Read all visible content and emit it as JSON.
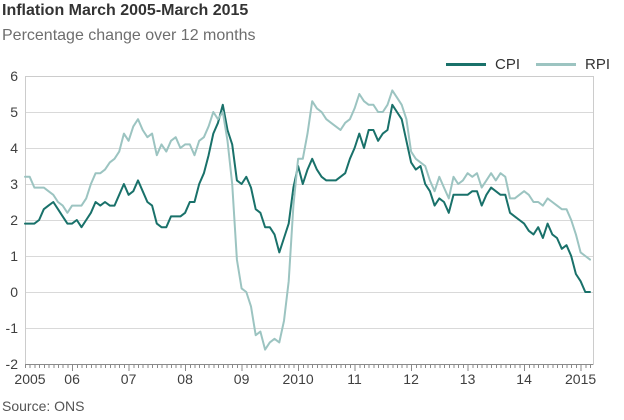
{
  "header": {
    "title": "Inflation March 2005-March 2015",
    "subtitle": "Percentage change over 12 months"
  },
  "footer": {
    "source": "Source: ONS"
  },
  "legend": [
    {
      "label": "CPI",
      "color": "#19716a"
    },
    {
      "label": "RPI",
      "color": "#9cc4c1"
    }
  ],
  "chart_data": {
    "type": "line",
    "title": "Inflation March 2005-March 2015",
    "subtitle": "Percentage change over 12 months",
    "source": "Source: ONS",
    "grid": true,
    "legend_position": "top-right",
    "ylim": [
      -2,
      6
    ],
    "y_ticks": [
      6,
      5,
      4,
      3,
      2,
      1,
      0,
      -1,
      -2
    ],
    "x_tick_labels": [
      "2005",
      "06",
      "07",
      "08",
      "09",
      "2010",
      "11",
      "12",
      "13",
      "14",
      "2015"
    ],
    "categories": [
      "2005-03",
      "2005-04",
      "2005-05",
      "2005-06",
      "2005-07",
      "2005-08",
      "2005-09",
      "2005-10",
      "2005-11",
      "2005-12",
      "2006-01",
      "2006-02",
      "2006-03",
      "2006-04",
      "2006-05",
      "2006-06",
      "2006-07",
      "2006-08",
      "2006-09",
      "2006-10",
      "2006-11",
      "2006-12",
      "2007-01",
      "2007-02",
      "2007-03",
      "2007-04",
      "2007-05",
      "2007-06",
      "2007-07",
      "2007-08",
      "2007-09",
      "2007-10",
      "2007-11",
      "2007-12",
      "2008-01",
      "2008-02",
      "2008-03",
      "2008-04",
      "2008-05",
      "2008-06",
      "2008-07",
      "2008-08",
      "2008-09",
      "2008-10",
      "2008-11",
      "2008-12",
      "2009-01",
      "2009-02",
      "2009-03",
      "2009-04",
      "2009-05",
      "2009-06",
      "2009-07",
      "2009-08",
      "2009-09",
      "2009-10",
      "2009-11",
      "2009-12",
      "2010-01",
      "2010-02",
      "2010-03",
      "2010-04",
      "2010-05",
      "2010-06",
      "2010-07",
      "2010-08",
      "2010-09",
      "2010-10",
      "2010-11",
      "2010-12",
      "2011-01",
      "2011-02",
      "2011-03",
      "2011-04",
      "2011-05",
      "2011-06",
      "2011-07",
      "2011-08",
      "2011-09",
      "2011-10",
      "2011-11",
      "2011-12",
      "2012-01",
      "2012-02",
      "2012-03",
      "2012-04",
      "2012-05",
      "2012-06",
      "2012-07",
      "2012-08",
      "2012-09",
      "2012-10",
      "2012-11",
      "2012-12",
      "2013-01",
      "2013-02",
      "2013-03",
      "2013-04",
      "2013-05",
      "2013-06",
      "2013-07",
      "2013-08",
      "2013-09",
      "2013-10",
      "2013-11",
      "2013-12",
      "2014-01",
      "2014-02",
      "2014-03",
      "2014-04",
      "2014-05",
      "2014-06",
      "2014-07",
      "2014-08",
      "2014-09",
      "2014-10",
      "2014-11",
      "2014-12",
      "2015-01",
      "2015-02",
      "2015-03"
    ],
    "series": [
      {
        "name": "CPI",
        "color": "#19716a",
        "values": [
          1.9,
          1.9,
          1.9,
          2.0,
          2.3,
          2.4,
          2.5,
          2.3,
          2.1,
          1.9,
          1.9,
          2.0,
          1.8,
          2.0,
          2.2,
          2.5,
          2.4,
          2.5,
          2.4,
          2.4,
          2.7,
          3.0,
          2.7,
          2.8,
          3.1,
          2.8,
          2.5,
          2.4,
          1.9,
          1.8,
          1.8,
          2.1,
          2.1,
          2.1,
          2.2,
          2.5,
          2.5,
          3.0,
          3.3,
          3.8,
          4.4,
          4.7,
          5.2,
          4.5,
          4.1,
          3.1,
          3.0,
          3.2,
          2.9,
          2.3,
          2.2,
          1.8,
          1.8,
          1.6,
          1.1,
          1.5,
          1.9,
          2.9,
          3.5,
          3.0,
          3.4,
          3.7,
          3.4,
          3.2,
          3.1,
          3.1,
          3.1,
          3.2,
          3.3,
          3.7,
          4.0,
          4.4,
          4.0,
          4.5,
          4.5,
          4.2,
          4.4,
          4.5,
          5.2,
          5.0,
          4.8,
          4.2,
          3.6,
          3.4,
          3.5,
          3.0,
          2.8,
          2.4,
          2.6,
          2.5,
          2.2,
          2.7,
          2.7,
          2.7,
          2.7,
          2.8,
          2.8,
          2.4,
          2.7,
          2.9,
          2.8,
          2.7,
          2.7,
          2.2,
          2.1,
          2.0,
          1.9,
          1.7,
          1.6,
          1.8,
          1.5,
          1.9,
          1.6,
          1.5,
          1.2,
          1.3,
          1.0,
          0.5,
          0.3,
          0.0,
          0.0
        ]
      },
      {
        "name": "RPI",
        "color": "#9cc4c1",
        "values": [
          3.2,
          3.2,
          2.9,
          2.9,
          2.9,
          2.8,
          2.7,
          2.5,
          2.4,
          2.2,
          2.4,
          2.4,
          2.4,
          2.6,
          3.0,
          3.3,
          3.3,
          3.4,
          3.6,
          3.7,
          3.9,
          4.4,
          4.2,
          4.6,
          4.8,
          4.5,
          4.3,
          4.4,
          3.8,
          4.1,
          3.9,
          4.2,
          4.3,
          4.0,
          4.1,
          4.1,
          3.8,
          4.2,
          4.3,
          4.6,
          5.0,
          4.8,
          5.0,
          4.2,
          3.0,
          0.9,
          0.1,
          0.0,
          -0.4,
          -1.2,
          -1.1,
          -1.6,
          -1.4,
          -1.3,
          -1.4,
          -0.8,
          0.3,
          2.4,
          3.7,
          3.7,
          4.4,
          5.3,
          5.1,
          5.0,
          4.8,
          4.7,
          4.6,
          4.5,
          4.7,
          4.8,
          5.1,
          5.5,
          5.3,
          5.2,
          5.2,
          5.0,
          5.0,
          5.2,
          5.6,
          5.4,
          5.2,
          4.8,
          3.9,
          3.7,
          3.6,
          3.5,
          3.1,
          2.8,
          3.2,
          2.9,
          2.6,
          3.2,
          3.0,
          3.1,
          3.3,
          3.2,
          3.3,
          2.9,
          3.1,
          3.3,
          3.1,
          3.3,
          3.2,
          2.6,
          2.6,
          2.7,
          2.8,
          2.7,
          2.5,
          2.5,
          2.4,
          2.6,
          2.5,
          2.4,
          2.3,
          2.3,
          2.0,
          1.6,
          1.1,
          1.0,
          0.9
        ]
      }
    ]
  }
}
